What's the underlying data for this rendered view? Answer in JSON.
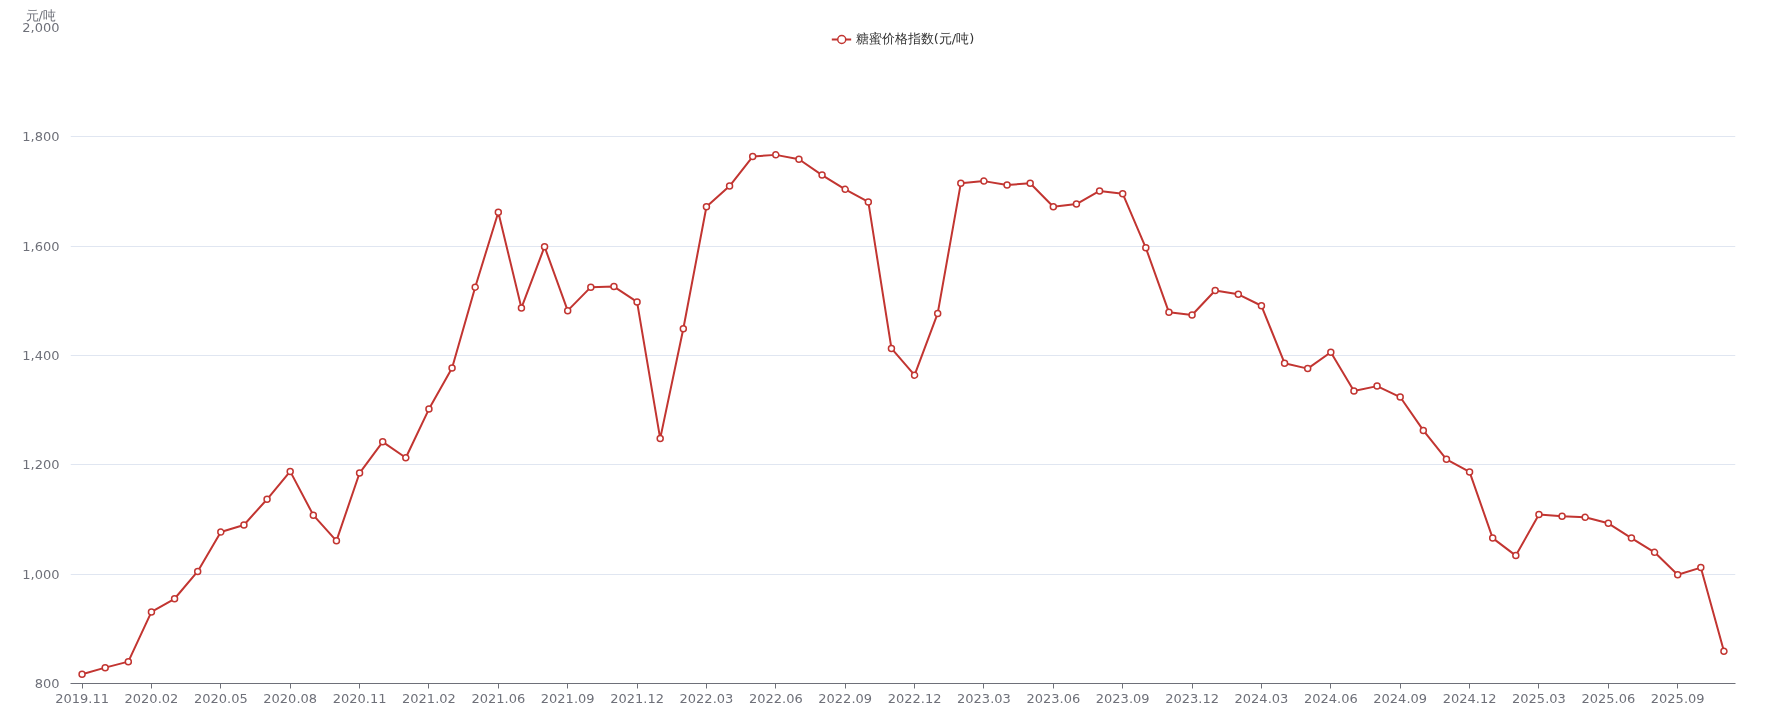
{
  "chart_data": {
    "type": "line",
    "ylabel": "元/吨",
    "categories": [
      "2019.11",
      null,
      null,
      "2020.02",
      null,
      null,
      "2020.05",
      null,
      null,
      "2020.08",
      null,
      null,
      "2020.11",
      null,
      null,
      "2021.02",
      null,
      null,
      "2021.06",
      null,
      null,
      "2021.09",
      null,
      null,
      "2021.12",
      null,
      null,
      "2022.03",
      null,
      null,
      "2022.06",
      null,
      null,
      "2022.09",
      null,
      null,
      "2022.12",
      null,
      null,
      "2023.03",
      null,
      null,
      "2023.06",
      null,
      null,
      "2023.09",
      null,
      null,
      "2023.12",
      null,
      null,
      "2024.03",
      null,
      null,
      "2024.06",
      null,
      null,
      "2024.09",
      null,
      null,
      "2024.12",
      null,
      null,
      "2025.03",
      null,
      null,
      "2025.06",
      null,
      null,
      "2025.09",
      null,
      null
    ],
    "series": [
      {
        "name": "糖蜜价格指数(元/吨)",
        "color": "#c23531",
        "values": [
          817,
          829,
          840,
          931,
          955,
          1005,
          1077,
          1090,
          1137,
          1188,
          1108,
          1061,
          1185,
          1242,
          1213,
          1302,
          1377,
          1525,
          1662,
          1487,
          1599,
          1482,
          1525,
          1526,
          1498,
          1248,
          1449,
          1672,
          1710,
          1764,
          1767,
          1759,
          1730,
          1704,
          1681,
          1413,
          1364,
          1477,
          1715,
          1719,
          1712,
          1715,
          1672,
          1677,
          1701,
          1696,
          1597,
          1479,
          1474,
          1519,
          1512,
          1491,
          1386,
          1376,
          1406,
          1335,
          1344,
          1324,
          1263,
          1210,
          1187,
          1066,
          1034,
          1109,
          1106,
          1104,
          1093,
          1066,
          1040,
          999,
          1012,
          859
        ]
      }
    ],
    "ylim": [
      800,
      2000
    ],
    "yticks": [
      {
        "value": 800,
        "label": "800"
      },
      {
        "value": 1000,
        "label": "1,000"
      },
      {
        "value": 1200,
        "label": "1,200"
      },
      {
        "value": 1400,
        "label": "1,400"
      },
      {
        "value": 1600,
        "label": "1,600"
      },
      {
        "value": 1800,
        "label": "1,800"
      },
      {
        "value": 2000,
        "label": "2,000"
      }
    ],
    "grid": "y",
    "legend": "top",
    "marker": "circle",
    "line_style": "solid"
  }
}
